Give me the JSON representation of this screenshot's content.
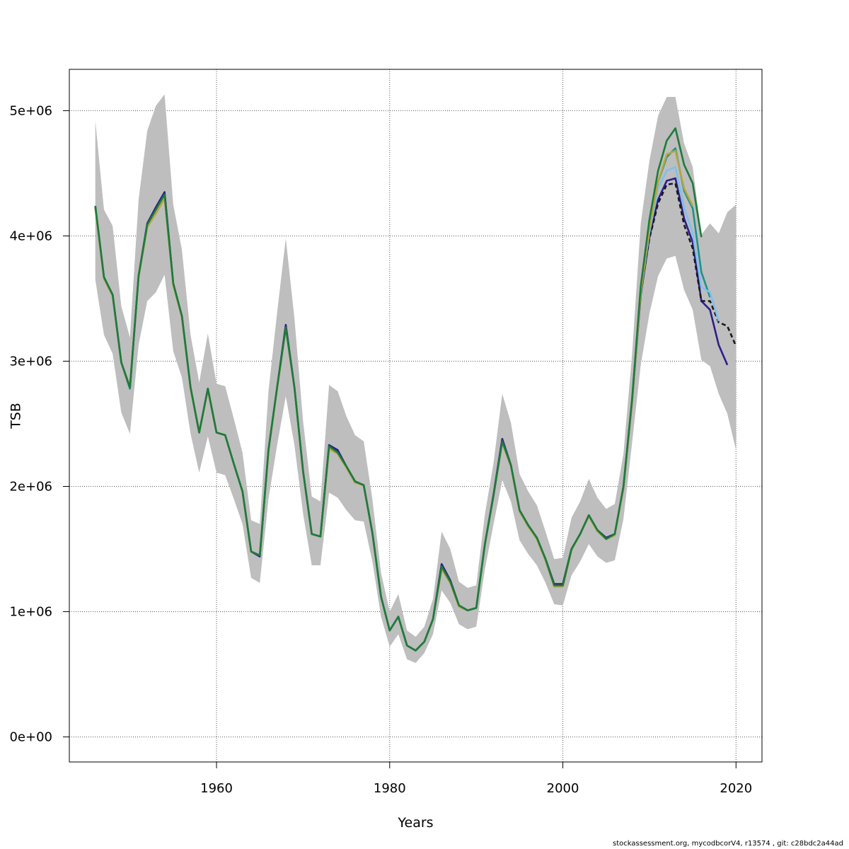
{
  "footer_text": "stockassessment.org, mycodbcorV4, r13574 , git: c28bdc2a44ad",
  "chart_data": {
    "type": "line",
    "title": "",
    "xlabel": "Years",
    "ylabel": "TSB",
    "xlim": [
      1943,
      2023
    ],
    "ylim": [
      -200000,
      5330000
    ],
    "x_ticks": [
      1960,
      1980,
      2000,
      2020
    ],
    "x_tick_labels": [
      "1960",
      "1980",
      "2000",
      "2020"
    ],
    "y_ticks": [
      0,
      1000000,
      2000000,
      3000000,
      4000000,
      5000000
    ],
    "y_tick_labels": [
      "0e+00",
      "1e+06",
      "2e+06",
      "3e+06",
      "4e+06",
      "5e+06"
    ],
    "grid": true,
    "band_color": "#bebebe",
    "band": {
      "x": [
        1946,
        1947,
        1948,
        1949,
        1950,
        1951,
        1952,
        1953,
        1954,
        1955,
        1956,
        1957,
        1958,
        1959,
        1960,
        1961,
        1962,
        1963,
        1964,
        1965,
        1966,
        1967,
        1968,
        1969,
        1970,
        1971,
        1972,
        1973,
        1974,
        1975,
        1976,
        1977,
        1978,
        1979,
        1980,
        1981,
        1982,
        1983,
        1984,
        1985,
        1986,
        1987,
        1988,
        1989,
        1990,
        1991,
        1992,
        1993,
        1994,
        1995,
        1996,
        1997,
        1998,
        1999,
        2000,
        2001,
        2002,
        2003,
        2004,
        2005,
        2006,
        2007,
        2008,
        2009,
        2010,
        2011,
        2012,
        2013,
        2014,
        2015,
        2016,
        2017,
        2018,
        2019,
        2020
      ],
      "lower": [
        3650000,
        3210000,
        3060000,
        2590000,
        2420000,
        3130000,
        3480000,
        3550000,
        3690000,
        3080000,
        2870000,
        2420000,
        2110000,
        2400000,
        2110000,
        2090000,
        1900000,
        1700000,
        1270000,
        1230000,
        1900000,
        2330000,
        2720000,
        2330000,
        1780000,
        1370000,
        1370000,
        1950000,
        1910000,
        1810000,
        1730000,
        1720000,
        1400000,
        960000,
        720000,
        820000,
        620000,
        590000,
        670000,
        820000,
        1170000,
        1070000,
        900000,
        860000,
        880000,
        1340000,
        1700000,
        2050000,
        1880000,
        1570000,
        1460000,
        1370000,
        1230000,
        1060000,
        1050000,
        1290000,
        1400000,
        1540000,
        1440000,
        1390000,
        1410000,
        1740000,
        2350000,
        2970000,
        3380000,
        3680000,
        3820000,
        3840000,
        3570000,
        3410000,
        3010000,
        2960000,
        2740000,
        2580000,
        2290000
      ],
      "upper": [
        4920000,
        4210000,
        4080000,
        3440000,
        3190000,
        4290000,
        4840000,
        5040000,
        5130000,
        4250000,
        3890000,
        3210000,
        2830000,
        3220000,
        2820000,
        2800000,
        2540000,
        2270000,
        1730000,
        1700000,
        2760000,
        3390000,
        3980000,
        3340000,
        2520000,
        1920000,
        1880000,
        2810000,
        2760000,
        2560000,
        2410000,
        2360000,
        1900000,
        1310000,
        1000000,
        1140000,
        850000,
        800000,
        880000,
        1100000,
        1640000,
        1500000,
        1240000,
        1190000,
        1210000,
        1780000,
        2190000,
        2740000,
        2510000,
        2100000,
        1960000,
        1850000,
        1640000,
        1420000,
        1430000,
        1750000,
        1880000,
        2060000,
        1910000,
        1820000,
        1860000,
        2260000,
        3060000,
        4100000,
        4600000,
        4960000,
        5110000,
        5110000,
        4740000,
        4550000,
        4010000,
        4100000,
        4020000,
        4190000,
        4250000
      ]
    },
    "series": [
      {
        "color": "#21908c",
        "x": [
          1946,
          1947,
          1948,
          1949,
          1950,
          1951,
          1952,
          1953,
          1954,
          1955,
          1956,
          1957,
          1958,
          1959,
          1960,
          1961,
          1962,
          1963,
          1964,
          1965,
          1966,
          1967,
          1968,
          1969,
          1970,
          1971,
          1972,
          1973,
          1974,
          1975,
          1976,
          1977,
          1978,
          1979,
          1980,
          1981,
          1982,
          1983,
          1984,
          1985,
          1986,
          1987,
          1988,
          1989,
          1990,
          1991,
          1992,
          1993,
          1994,
          1995,
          1996,
          1997,
          1998,
          1999,
          2000,
          2001,
          2002,
          2003,
          2004,
          2005,
          2006,
          2007,
          2008,
          2009,
          2010,
          2011,
          2012,
          2013,
          2014,
          2015,
          2016,
          2017
        ],
        "y": [
          4240000,
          3670000,
          3530000,
          2990000,
          2780000,
          3680000,
          4090000,
          4220000,
          4340000,
          3620000,
          3360000,
          2790000,
          2430000,
          2780000,
          2430000,
          2410000,
          2180000,
          1960000,
          1480000,
          1450000,
          2290000,
          2790000,
          3280000,
          2790000,
          2120000,
          1620000,
          1600000,
          2330000,
          2280000,
          2160000,
          2040000,
          2010000,
          1630000,
          1120000,
          850000,
          960000,
          730000,
          690000,
          760000,
          940000,
          1370000,
          1250000,
          1050000,
          1010000,
          1030000,
          1540000,
          1930000,
          2370000,
          2170000,
          1810000,
          1690000,
          1590000,
          1420000,
          1220000,
          1220000,
          1500000,
          1620000,
          1770000,
          1650000,
          1590000,
          1620000,
          2000000,
          2690000,
          3550000,
          4060000,
          4430000,
          4630000,
          4700000,
          4360000,
          4220000,
          3710000,
          3510000
        ]
      },
      {
        "color": "#2d1e8c",
        "x": [
          1946,
          1947,
          1948,
          1949,
          1950,
          1951,
          1952,
          1953,
          1954,
          1955,
          1956,
          1957,
          1958,
          1959,
          1960,
          1961,
          1962,
          1963,
          1964,
          1965,
          1966,
          1967,
          1968,
          1969,
          1970,
          1971,
          1972,
          1973,
          1974,
          1975,
          1976,
          1977,
          1978,
          1979,
          1980,
          1981,
          1982,
          1983,
          1984,
          1985,
          1986,
          1987,
          1988,
          1989,
          1990,
          1991,
          1992,
          1993,
          1994,
          1995,
          1996,
          1997,
          1998,
          1999,
          2000,
          2001,
          2002,
          2003,
          2004,
          2005,
          2006,
          2007,
          2008,
          2009,
          2010,
          2011,
          2012,
          2013,
          2014,
          2015,
          2016,
          2017,
          2018,
          2019
        ],
        "y": [
          4230000,
          3670000,
          3530000,
          2990000,
          2790000,
          3680000,
          4100000,
          4230000,
          4350000,
          3620000,
          3360000,
          2790000,
          2430000,
          2780000,
          2430000,
          2410000,
          2180000,
          1960000,
          1480000,
          1440000,
          2290000,
          2790000,
          3290000,
          2790000,
          2120000,
          1620000,
          1600000,
          2330000,
          2290000,
          2160000,
          2040000,
          2010000,
          1630000,
          1120000,
          850000,
          960000,
          730000,
          690000,
          760000,
          940000,
          1380000,
          1250000,
          1050000,
          1010000,
          1030000,
          1540000,
          1940000,
          2380000,
          2170000,
          1810000,
          1690000,
          1590000,
          1420000,
          1220000,
          1220000,
          1500000,
          1620000,
          1770000,
          1650000,
          1590000,
          1620000,
          1990000,
          2680000,
          3530000,
          3990000,
          4290000,
          4440000,
          4460000,
          4140000,
          3950000,
          3480000,
          3410000,
          3130000,
          2970000
        ]
      },
      {
        "color": "#1a1a1a",
        "dashed": true,
        "x": [
          2009,
          2010,
          2011,
          2012,
          2013,
          2014,
          2015,
          2016,
          2017,
          2018,
          2019,
          2020
        ],
        "y": [
          3550000,
          3980000,
          4260000,
          4410000,
          4420000,
          4090000,
          3900000,
          3480000,
          3480000,
          3310000,
          3280000,
          3120000
        ]
      },
      {
        "color": "#7ec0ee",
        "x": [
          2009,
          2010,
          2011,
          2012,
          2013,
          2014,
          2015,
          2016,
          2017,
          2018
        ],
        "y": [
          3550000,
          4030000,
          4380000,
          4520000,
          4550000,
          4230000,
          4020000,
          3590000,
          3550000,
          3320000
        ]
      },
      {
        "color": "#b5a642",
        "x": [
          1946,
          1947,
          1948,
          1949,
          1950,
          1951,
          1952,
          1953,
          1954,
          1955,
          1956,
          1957,
          1958,
          1959,
          1960,
          1961,
          1962,
          1963,
          1964,
          1965,
          1966,
          1967,
          1968,
          1969,
          1970,
          1971,
          1972,
          1973,
          1974,
          1975,
          1976,
          1977,
          1978,
          1979,
          1980,
          1981,
          1982,
          1983,
          1984,
          1985,
          1986,
          1987,
          1988,
          1989,
          1990,
          1991,
          1992,
          1993,
          1994,
          1995,
          1996,
          1997,
          1998,
          1999,
          2000,
          2001,
          2002,
          2003,
          2004,
          2005,
          2006,
          2007,
          2008,
          2009,
          2010,
          2011,
          2012,
          2013,
          2014,
          2015
        ],
        "y": [
          4220000,
          3660000,
          3520000,
          2990000,
          2800000,
          3670000,
          4070000,
          4180000,
          4300000,
          3610000,
          3350000,
          2790000,
          2430000,
          2770000,
          2430000,
          2410000,
          2180000,
          1960000,
          1480000,
          1450000,
          2290000,
          2780000,
          3260000,
          2790000,
          2120000,
          1620000,
          1600000,
          2300000,
          2260000,
          2150000,
          2030000,
          2010000,
          1630000,
          1120000,
          850000,
          960000,
          730000,
          690000,
          760000,
          940000,
          1340000,
          1230000,
          1040000,
          1010000,
          1030000,
          1540000,
          1930000,
          2350000,
          2160000,
          1800000,
          1680000,
          1580000,
          1410000,
          1200000,
          1200000,
          1490000,
          1620000,
          1760000,
          1640000,
          1580000,
          1610000,
          1990000,
          2680000,
          3550000,
          4060000,
          4430000,
          4650000,
          4680000,
          4380000,
          4240000
        ]
      },
      {
        "color": "#1e7b3a",
        "x": [
          1946,
          1947,
          1948,
          1949,
          1950,
          1951,
          1952,
          1953,
          1954,
          1955,
          1956,
          1957,
          1958,
          1959,
          1960,
          1961,
          1962,
          1963,
          1964,
          1965,
          1966,
          1967,
          1968,
          1969,
          1970,
          1971,
          1972,
          1973,
          1974,
          1975,
          1976,
          1977,
          1978,
          1979,
          1980,
          1981,
          1982,
          1983,
          1984,
          1985,
          1986,
          1987,
          1988,
          1989,
          1990,
          1991,
          1992,
          1993,
          1994,
          1995,
          1996,
          1997,
          1998,
          1999,
          2000,
          2001,
          2002,
          2003,
          2004,
          2005,
          2006,
          2007,
          2008,
          2009,
          2010,
          2011,
          2012,
          2013,
          2014,
          2015,
          2016
        ],
        "y": [
          4240000,
          3670000,
          3530000,
          2990000,
          2790000,
          3680000,
          4090000,
          4210000,
          4330000,
          3620000,
          3360000,
          2790000,
          2430000,
          2780000,
          2430000,
          2410000,
          2180000,
          1960000,
          1480000,
          1450000,
          2290000,
          2790000,
          3270000,
          2790000,
          2120000,
          1620000,
          1600000,
          2320000,
          2270000,
          2160000,
          2040000,
          2010000,
          1630000,
          1120000,
          850000,
          960000,
          730000,
          690000,
          760000,
          940000,
          1360000,
          1240000,
          1050000,
          1010000,
          1030000,
          1540000,
          1930000,
          2360000,
          2170000,
          1810000,
          1690000,
          1590000,
          1420000,
          1210000,
          1210000,
          1500000,
          1620000,
          1770000,
          1650000,
          1580000,
          1620000,
          2000000,
          2700000,
          3600000,
          4130000,
          4520000,
          4760000,
          4860000,
          4570000,
          4420000,
          3990000
        ]
      }
    ]
  }
}
